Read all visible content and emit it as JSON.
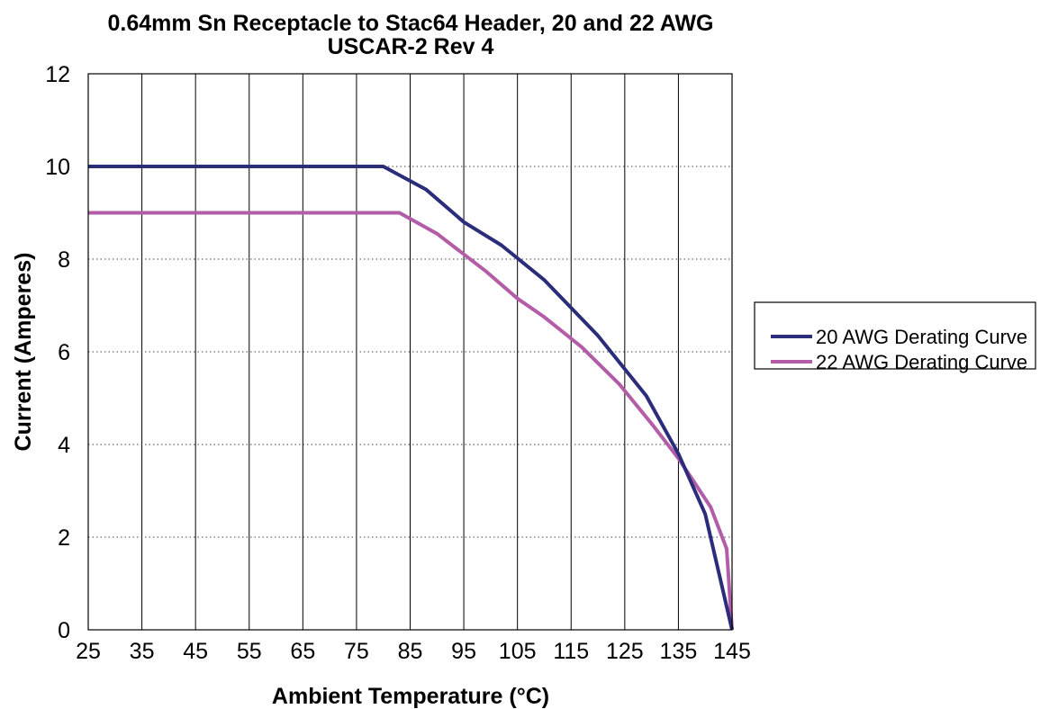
{
  "chart_data": {
    "type": "line",
    "title": "0.64mm Sn Receptacle to Stac64 Header, 20 and 22 AWG",
    "subtitle": "USCAR-2 Rev 4",
    "xlabel": "Ambient Temperature (°C)",
    "ylabel": "Current (Amperes)",
    "xlim": [
      25,
      145
    ],
    "ylim": [
      0,
      12
    ],
    "x_ticks": [
      "25",
      "35",
      "45",
      "55",
      "65",
      "75",
      "85",
      "95",
      "105",
      "115",
      "125",
      "135",
      "145"
    ],
    "y_ticks": [
      "0",
      "2",
      "4",
      "6",
      "8",
      "10",
      "12"
    ],
    "grid": "vertical solid, horizontal dotted",
    "legend_position": "right",
    "series": [
      {
        "name": "20 AWG Derating Curve",
        "color": "#2b2d7a",
        "points": [
          [
            25,
            10
          ],
          [
            80,
            10
          ],
          [
            88,
            9.5
          ],
          [
            95,
            8.8
          ],
          [
            102,
            8.3
          ],
          [
            110,
            7.55
          ],
          [
            120,
            6.35
          ],
          [
            129,
            5.05
          ],
          [
            135,
            3.8
          ],
          [
            140,
            2.5
          ],
          [
            145,
            0
          ]
        ]
      },
      {
        "name": "22 AWG Derating Curve",
        "color": "#b35da8",
        "points": [
          [
            25,
            9
          ],
          [
            83,
            9
          ],
          [
            90,
            8.55
          ],
          [
            99,
            7.75
          ],
          [
            105,
            7.15
          ],
          [
            110,
            6.75
          ],
          [
            117,
            6.1
          ],
          [
            124,
            5.3
          ],
          [
            130,
            4.45
          ],
          [
            135,
            3.7
          ],
          [
            141,
            2.65
          ],
          [
            144,
            1.75
          ],
          [
            145,
            0
          ]
        ]
      }
    ]
  }
}
